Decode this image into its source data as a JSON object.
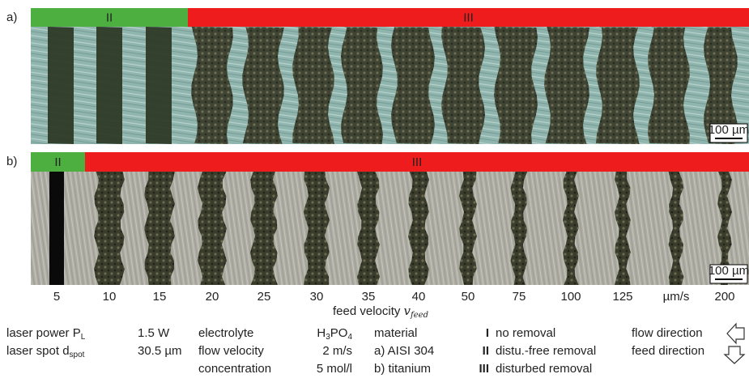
{
  "panels": [
    {
      "label": "a)",
      "zones": [
        {
          "label": "II",
          "color": "#4caf3f"
        },
        {
          "label": "III",
          "color": "#ee1c1c"
        }
      ],
      "scale_bar": "100 µm"
    },
    {
      "label": "b)",
      "zones": [
        {
          "label": "II",
          "color": "#4caf3f"
        },
        {
          "label": "III",
          "color": "#ee1c1c"
        }
      ],
      "scale_bar": "100 µm"
    }
  ],
  "x_axis": {
    "labels": [
      "5",
      "10",
      "15",
      "20",
      "25",
      "30",
      "35",
      "40",
      "50",
      "75",
      "100",
      "125",
      "µm/s",
      "200"
    ],
    "title": [
      {
        "t": "feed velocity "
      },
      {
        "i": "v"
      },
      {
        "sub": "feed"
      }
    ]
  },
  "legend": {
    "laser": [
      {
        "name": [
          {
            "t": "laser power P"
          },
          {
            "sub": "L"
          }
        ],
        "value": [
          {
            "t": "1.5 W"
          }
        ]
      },
      {
        "name": [
          {
            "t": "laser spot d"
          },
          {
            "sub": "spot"
          }
        ],
        "value": [
          {
            "t": "30.5 µm"
          }
        ]
      }
    ],
    "process": [
      {
        "name": [
          {
            "t": "electrolyte"
          }
        ],
        "value": [
          {
            "t": "H"
          },
          {
            "sub": "3"
          },
          {
            "t": "PO"
          },
          {
            "sub": "4"
          }
        ]
      },
      {
        "name": [
          {
            "t": "flow velocity"
          }
        ],
        "value": [
          {
            "t": "2 m/s"
          }
        ]
      },
      {
        "name": [
          {
            "t": "concentration"
          }
        ],
        "value": [
          {
            "t": "5 mol/l"
          }
        ]
      }
    ],
    "material": [
      "material",
      "a) AISI 304",
      "b) titanium"
    ],
    "regimes": [
      {
        "mark": "I",
        "text": "no removal"
      },
      {
        "mark": "II",
        "text": "distu.-free removal"
      },
      {
        "mark": "III",
        "text": "disturbed removal"
      }
    ],
    "directions": [
      "flow direction",
      "feed direction"
    ]
  }
}
